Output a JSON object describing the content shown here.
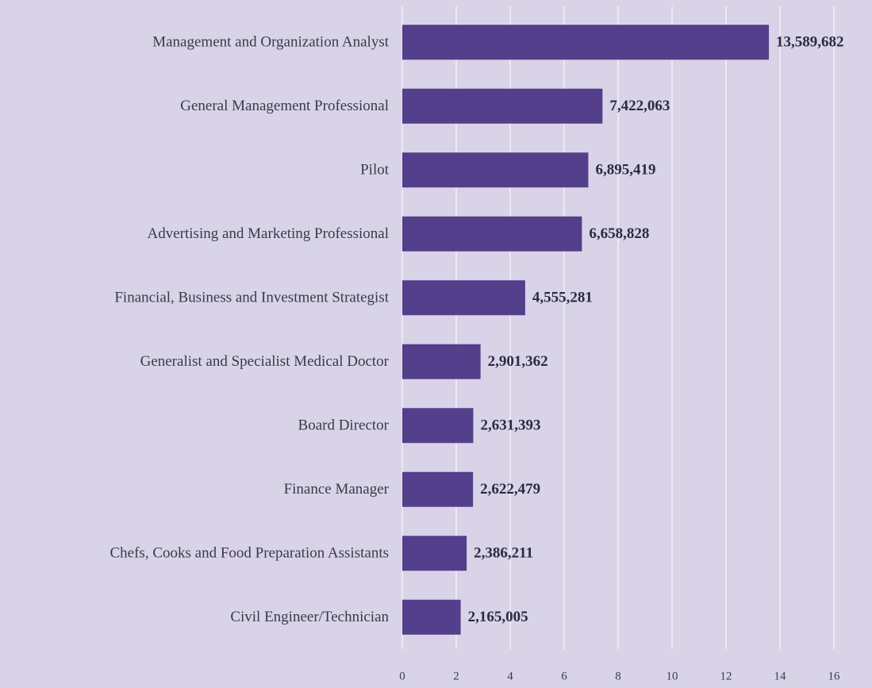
{
  "chart_data": {
    "type": "hbar",
    "categories": [
      "Management and Organization Analyst",
      "General Management Professional",
      "Pilot",
      "Advertising and Marketing Professional",
      "Financial, Business and Investment Strategist",
      "Generalist and Specialist Medical Doctor",
      "Board Director",
      "Finance Manager",
      "Chefs, Cooks and Food Preparation Assistants",
      "Civil Engineer/Technician"
    ],
    "values": [
      13.589682,
      7.422063,
      6.895419,
      6.658828,
      4.555281,
      2.901362,
      2.631393,
      2.622479,
      2.386211,
      2.165005
    ],
    "value_labels": [
      "13,589,682",
      "7,422,063",
      "6,895,419",
      "6,658,828",
      "4,555,281",
      "2,901,362",
      "2,631,393",
      "2,622,479",
      "2,386,211",
      "2,165,005"
    ],
    "color": "#533f8c",
    "xlim": [
      0,
      16
    ],
    "xticks": [
      0,
      2,
      4,
      6,
      8,
      10,
      12,
      14,
      16
    ],
    "grid": true
  }
}
